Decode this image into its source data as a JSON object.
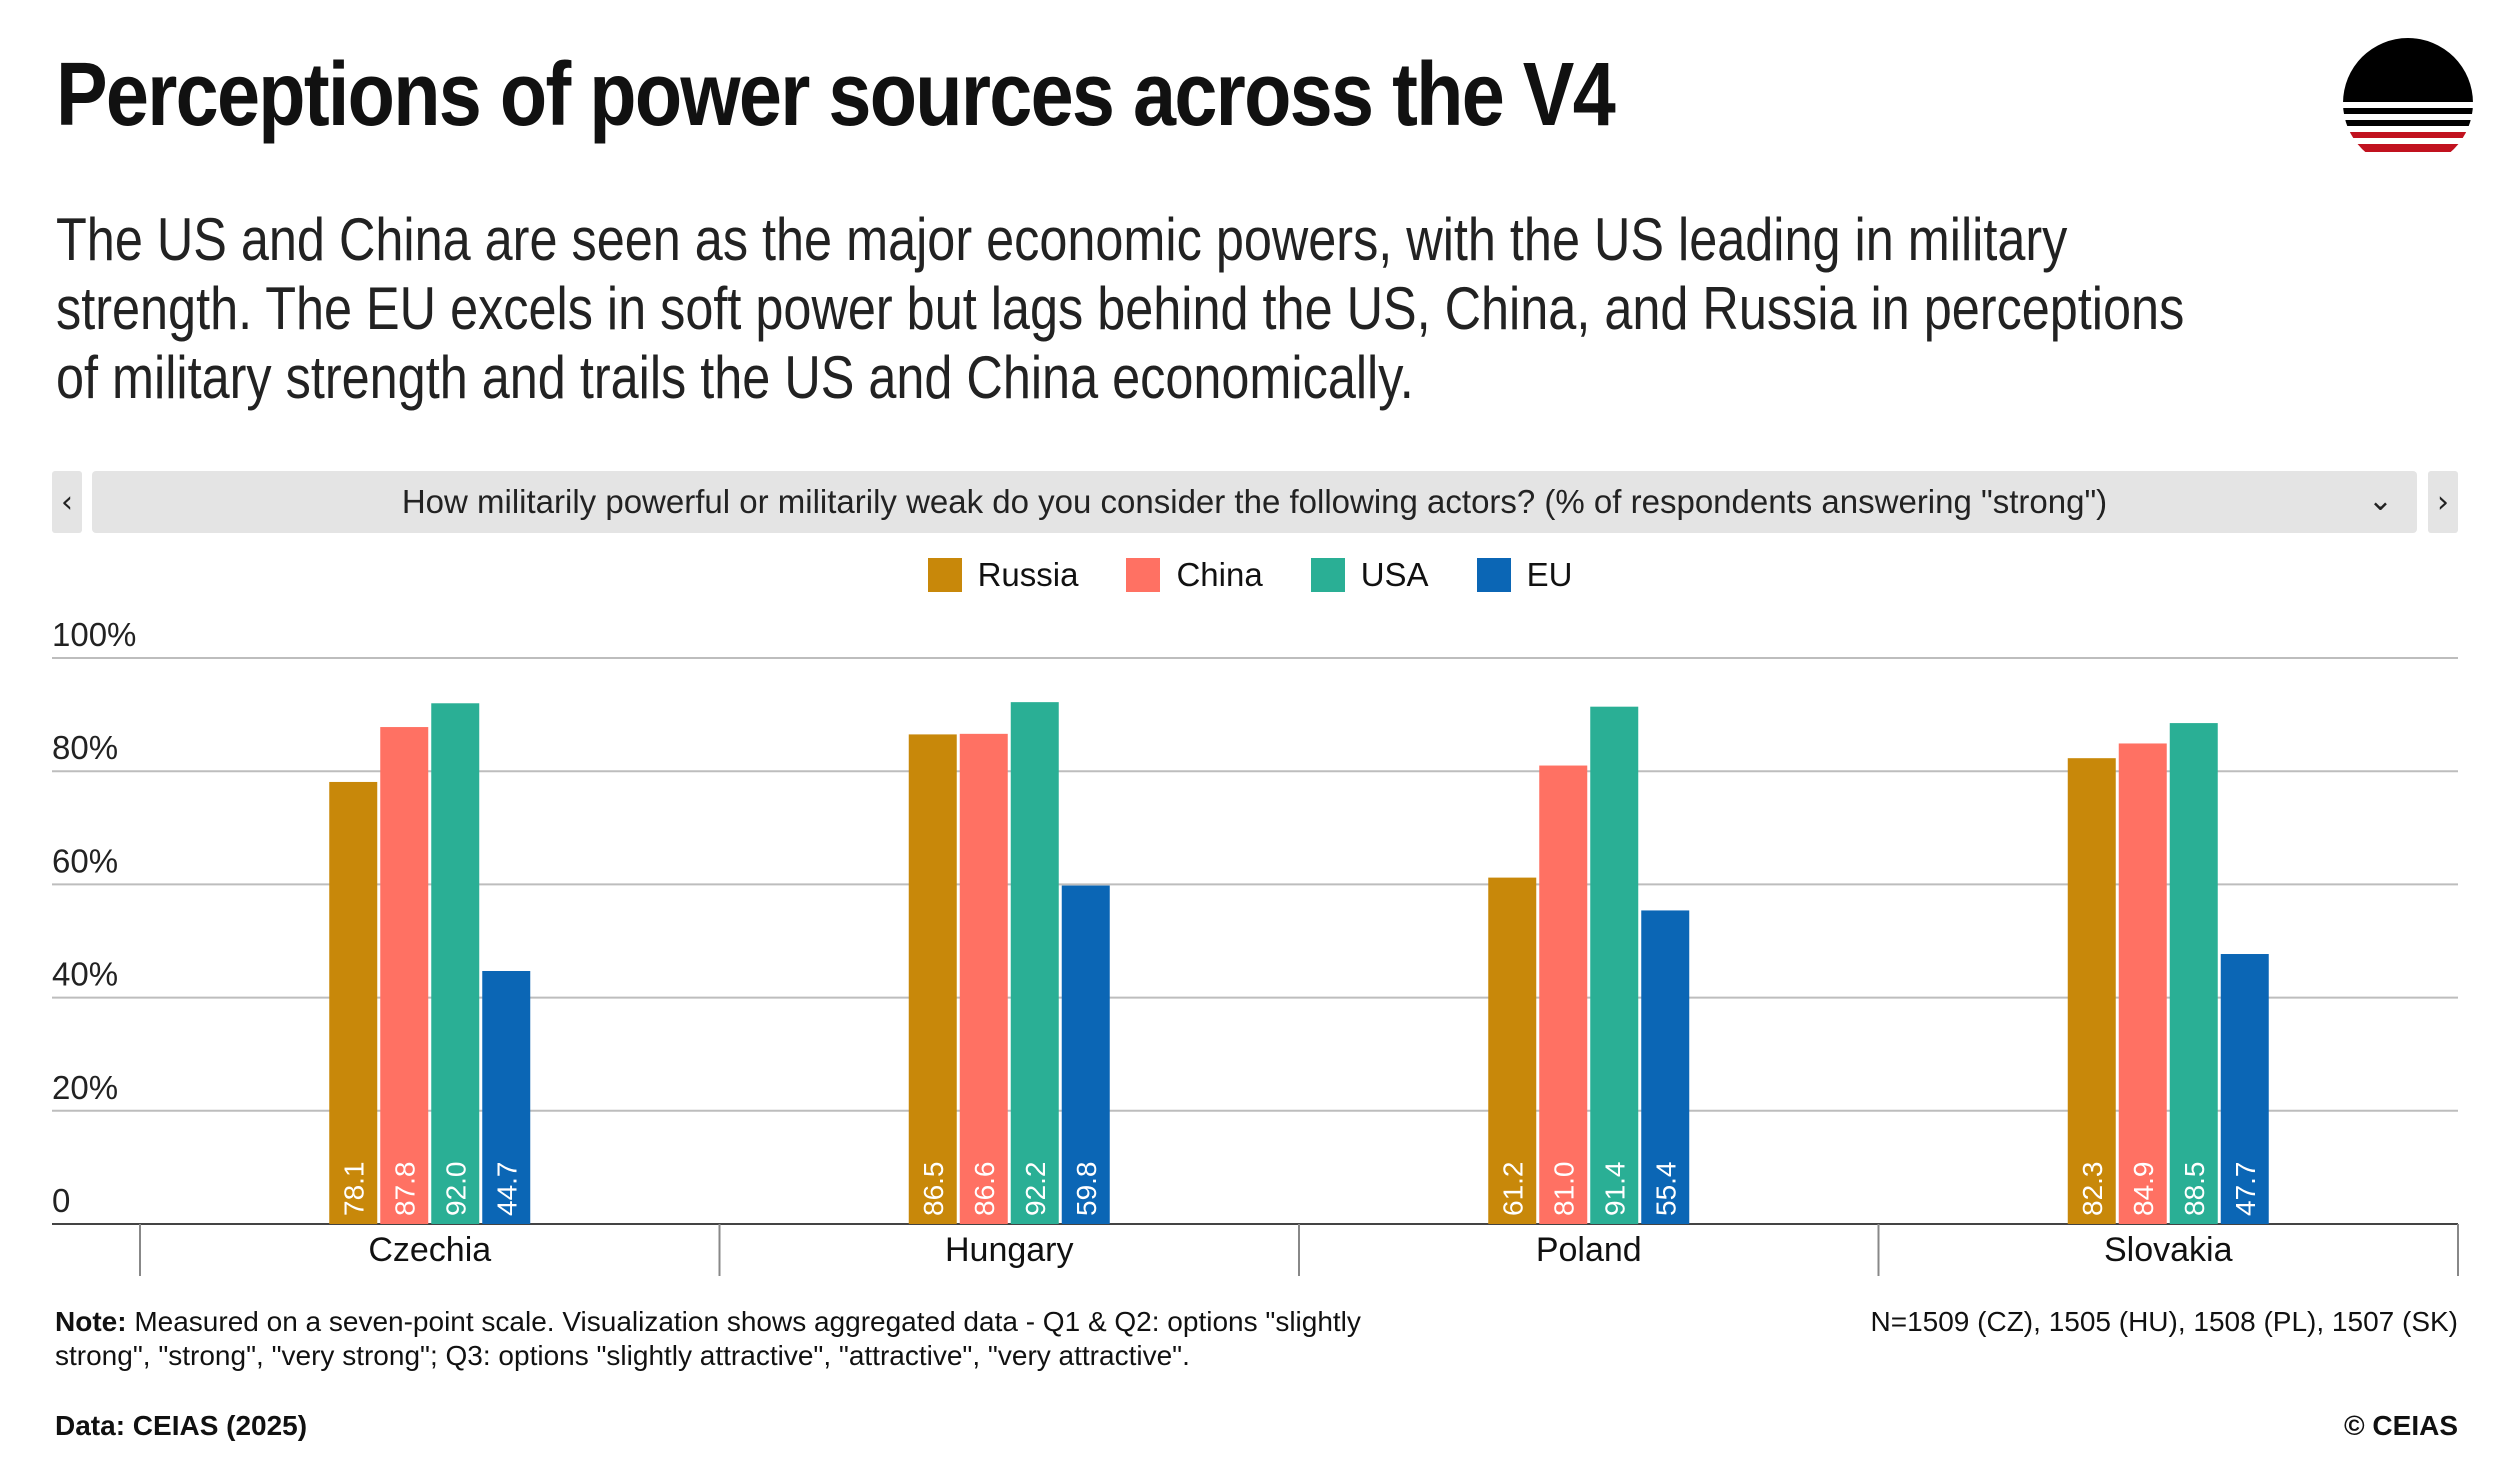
{
  "title": "Perceptions of power sources across the V4",
  "subtitle": "The US and China are seen as the major economic powers, with the US leading in military strength. The EU excels in soft power but lags behind the US, China, and Russia in perceptions of military strength and trails the US and China economically.",
  "selector": {
    "prev_icon": "chevron-left-icon",
    "next_icon": "chevron-right-icon",
    "dropdown_icon": "chevron-down-icon",
    "prev_glyph": "‹",
    "next_glyph": "›",
    "dropdown_glyph": "⌄",
    "question": "How militarily powerful or militarily weak do you consider the following actors? (% of respondents answering \"strong\")"
  },
  "colors": {
    "Russia": "#c8880a",
    "China": "#ff7163",
    "USA": "#2aaf95",
    "EU": "#0b66b5"
  },
  "chart_data": {
    "type": "bar",
    "categories": [
      "Czechia",
      "Hungary",
      "Poland",
      "Slovakia"
    ],
    "series": [
      {
        "name": "Russia",
        "values": [
          78.1,
          86.5,
          61.2,
          82.3
        ]
      },
      {
        "name": "China",
        "values": [
          87.8,
          86.6,
          81.0,
          84.9
        ]
      },
      {
        "name": "USA",
        "values": [
          92.0,
          92.2,
          91.4,
          88.5
        ]
      },
      {
        "name": "EU",
        "values": [
          44.7,
          59.8,
          55.4,
          47.7
        ]
      }
    ],
    "yticks": [
      "0",
      "20%",
      "40%",
      "60%",
      "80%",
      "100%"
    ],
    "ylim": [
      0,
      100
    ],
    "grid": true,
    "legend_position": "top-center",
    "data_labels": "inside-bottom-vertical"
  },
  "footer": {
    "note_label": "Note:",
    "note_text": "Measured on a seven-point scale. Visualization shows aggregated data - Q1 & Q2: options \"slightly strong\", \"strong\", \"very strong\"; Q3: options \"slightly attractive\", \"attractive\", \"very attractive\".",
    "sample": "N=1509 (CZ), 1505 (HU), 1508 (PL), 1507 (SK)",
    "source": "Data: CEIAS (2025)",
    "copyright": "© CEIAS"
  }
}
